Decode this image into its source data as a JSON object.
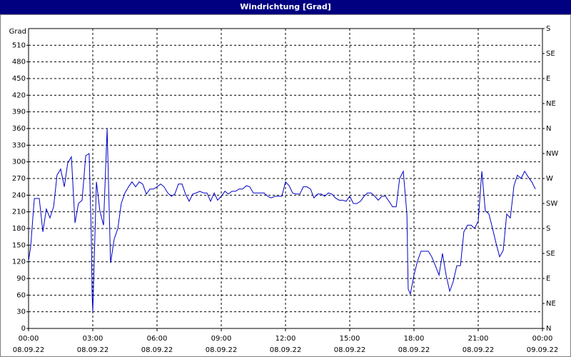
{
  "chart_data": {
    "type": "line",
    "title": "Windrichtung [Grad]",
    "y_label": "Grad",
    "x": [
      0,
      0.1,
      0.27,
      0.5,
      0.67,
      0.83,
      1,
      1.17,
      1.33,
      1.5,
      1.67,
      1.83,
      2,
      2.17,
      2.33,
      2.5,
      2.67,
      2.83,
      2.93,
      2.97,
      3,
      3.17,
      3.33,
      3.5,
      3.67,
      3.83,
      4,
      4.17,
      4.33,
      4.5,
      4.67,
      4.83,
      5,
      5.17,
      5.33,
      5.5,
      5.67,
      5.83,
      6,
      6.17,
      6.33,
      6.5,
      6.67,
      6.83,
      7,
      7.17,
      7.33,
      7.5,
      7.67,
      7.83,
      8,
      8.17,
      8.33,
      8.5,
      8.67,
      8.83,
      9,
      9.17,
      9.33,
      9.5,
      9.67,
      9.83,
      10,
      10.17,
      10.33,
      10.5,
      10.67,
      10.83,
      11,
      11.17,
      11.33,
      11.5,
      11.67,
      11.83,
      12,
      12.17,
      12.33,
      12.5,
      12.67,
      12.83,
      13,
      13.17,
      13.33,
      13.5,
      13.67,
      13.83,
      14,
      14.17,
      14.33,
      14.5,
      14.67,
      14.83,
      15,
      15.17,
      15.33,
      15.5,
      15.67,
      15.83,
      16,
      16.17,
      16.33,
      16.5,
      16.67,
      16.83,
      17,
      17.17,
      17.33,
      17.5,
      17.67,
      17.73,
      17.83,
      18,
      18.17,
      18.33,
      18.5,
      18.67,
      18.83,
      19,
      19.17,
      19.33,
      19.5,
      19.67,
      19.83,
      20,
      20.17,
      20.33,
      20.5,
      20.67,
      20.83,
      21,
      21.17,
      21.33,
      21.5,
      21.67,
      21.83,
      22,
      22.17,
      22.33,
      22.5,
      22.67,
      22.83,
      23,
      23.17,
      23.33,
      23.5,
      23.67
    ],
    "series": [
      {
        "name": "Windrichtung",
        "color": "#0000c8",
        "values": [
          122,
          148,
          234,
          234,
          174,
          215,
          199,
          219,
          276,
          287,
          255,
          298,
          309,
          190,
          225,
          231,
          311,
          315,
          167,
          58,
          30,
          264,
          212,
          186,
          360,
          118,
          161,
          180,
          225,
          244,
          255,
          264,
          255,
          264,
          260,
          242,
          251,
          251,
          255,
          260,
          255,
          244,
          238,
          242,
          260,
          260,
          242,
          229,
          242,
          244,
          247,
          244,
          244,
          229,
          244,
          231,
          238,
          247,
          242,
          247,
          247,
          251,
          251,
          257,
          255,
          244,
          244,
          244,
          244,
          238,
          235,
          238,
          238,
          238,
          264,
          257,
          244,
          242,
          242,
          255,
          255,
          251,
          235,
          242,
          242,
          238,
          244,
          242,
          235,
          231,
          231,
          229,
          238,
          225,
          225,
          229,
          238,
          244,
          244,
          238,
          231,
          238,
          238,
          229,
          219,
          219,
          270,
          283,
          206,
          71,
          62,
          96,
          122,
          139,
          139,
          139,
          129,
          113,
          96,
          135,
          96,
          67,
          84,
          113,
          113,
          174,
          186,
          186,
          180,
          193,
          283,
          212,
          206,
          180,
          154,
          129,
          141,
          206,
          199,
          257,
          276,
          270,
          283,
          273,
          264,
          251
        ]
      }
    ],
    "xlim": [
      0,
      24
    ],
    "xticks": [
      {
        "value": 0,
        "label": "00:00"
      },
      {
        "value": 3,
        "label": "03:00"
      },
      {
        "value": 6,
        "label": "06:00"
      },
      {
        "value": 9,
        "label": "09:00"
      },
      {
        "value": 12,
        "label": "12:00"
      },
      {
        "value": 15,
        "label": "15:00"
      },
      {
        "value": 18,
        "label": "18:00"
      },
      {
        "value": 21,
        "label": "21:00"
      },
      {
        "value": 24,
        "label": "00:00"
      }
    ],
    "xtick_dates": [
      "08.09.22",
      "08.09.22",
      "08.09.22",
      "08.09.22",
      "08.09.22",
      "08.09.22",
      "08.09.22",
      "08.09.22",
      "09.09.22"
    ],
    "ylim": [
      0,
      540
    ],
    "yticks": [
      0,
      30,
      60,
      90,
      120,
      150,
      180,
      210,
      240,
      270,
      300,
      330,
      360,
      390,
      420,
      450,
      480,
      510
    ],
    "y2lim": [
      0,
      540
    ],
    "y2ticks": [
      {
        "value": 0,
        "label": "N"
      },
      {
        "value": 45,
        "label": "NE"
      },
      {
        "value": 90,
        "label": "E"
      },
      {
        "value": 135,
        "label": "SE"
      },
      {
        "value": 180,
        "label": "S"
      },
      {
        "value": 225,
        "label": "SW"
      },
      {
        "value": 270,
        "label": "W"
      },
      {
        "value": 315,
        "label": "NW"
      },
      {
        "value": 360,
        "label": "N"
      },
      {
        "value": 405,
        "label": "NE"
      },
      {
        "value": 450,
        "label": "E"
      },
      {
        "value": 495,
        "label": "SE"
      },
      {
        "value": 540,
        "label": "S"
      }
    ],
    "grid": true
  }
}
